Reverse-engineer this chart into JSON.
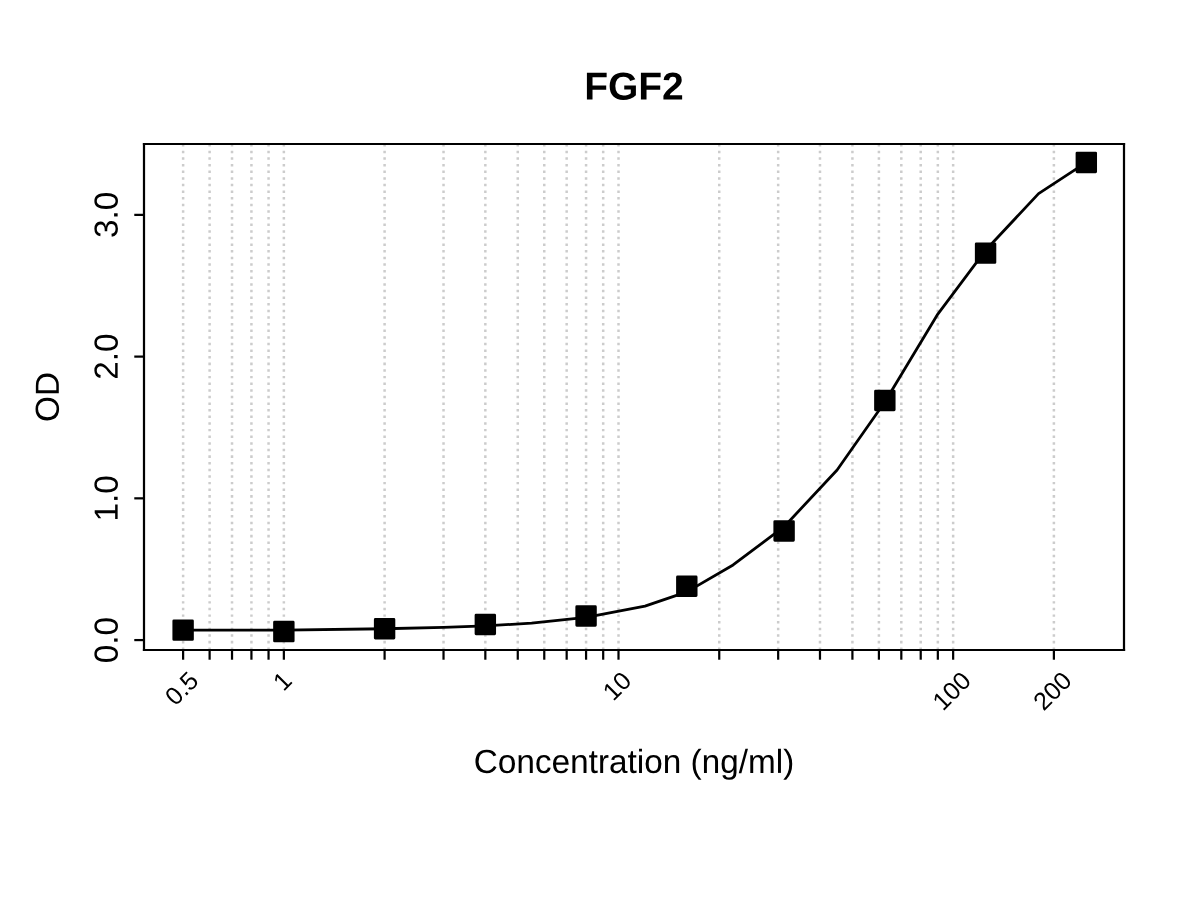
{
  "chart_data": {
    "type": "scatter",
    "title": "FGF2",
    "xlabel": "Concentration (ng/ml)",
    "ylabel": "OD",
    "log": "x",
    "grid": "x",
    "marker": "square",
    "x": [
      0.5,
      1,
      2,
      4,
      8,
      16,
      31.25,
      62.5,
      125,
      250
    ],
    "series": [
      {
        "color": "#000000",
        "values": [
          0.07,
          0.06,
          0.08,
          0.11,
          0.17,
          0.38,
          0.77,
          1.69,
          2.73,
          3.37
        ]
      },
      {
        "type": "line",
        "color": "#000000",
        "marker": "none",
        "line_style": "solid",
        "x": [
          0.5,
          1,
          2,
          3,
          4,
          5.5,
          8,
          12,
          16,
          22,
          31.25,
          45,
          62.5,
          90,
          125,
          180,
          250
        ],
        "values": [
          0.07,
          0.07,
          0.08,
          0.09,
          0.1,
          0.12,
          0.16,
          0.24,
          0.34,
          0.53,
          0.8,
          1.2,
          1.68,
          2.3,
          2.75,
          3.15,
          3.37
        ]
      }
    ],
    "xlim": [
      0.382,
      324
    ],
    "ylim": [
      -0.07,
      3.5
    ],
    "xticks": [
      0.5,
      {
        "value": 0.6,
        "label": null
      },
      {
        "value": 0.7,
        "label": null
      },
      {
        "value": 0.8,
        "label": null
      },
      {
        "value": 0.9,
        "label": null
      },
      1,
      {
        "value": 2,
        "label": null
      },
      {
        "value": 3,
        "label": null
      },
      {
        "value": 4,
        "label": null
      },
      {
        "value": 5,
        "label": null
      },
      {
        "value": 6,
        "label": null
      },
      {
        "value": 7,
        "label": null
      },
      {
        "value": 8,
        "label": null
      },
      {
        "value": 9,
        "label": null
      },
      10,
      {
        "value": 20,
        "label": null
      },
      {
        "value": 30,
        "label": null
      },
      {
        "value": 40,
        "label": null
      },
      {
        "value": 50,
        "label": null
      },
      {
        "value": 60,
        "label": null
      },
      {
        "value": 70,
        "label": null
      },
      {
        "value": 80,
        "label": null
      },
      {
        "value": 90,
        "label": null
      },
      100,
      200
    ],
    "yticks": [
      {
        "value": 0,
        "label": "0.0"
      },
      {
        "value": 1,
        "label": "1.0"
      },
      {
        "value": 2,
        "label": "2.0"
      },
      {
        "value": 3,
        "label": "3.0"
      }
    ]
  }
}
